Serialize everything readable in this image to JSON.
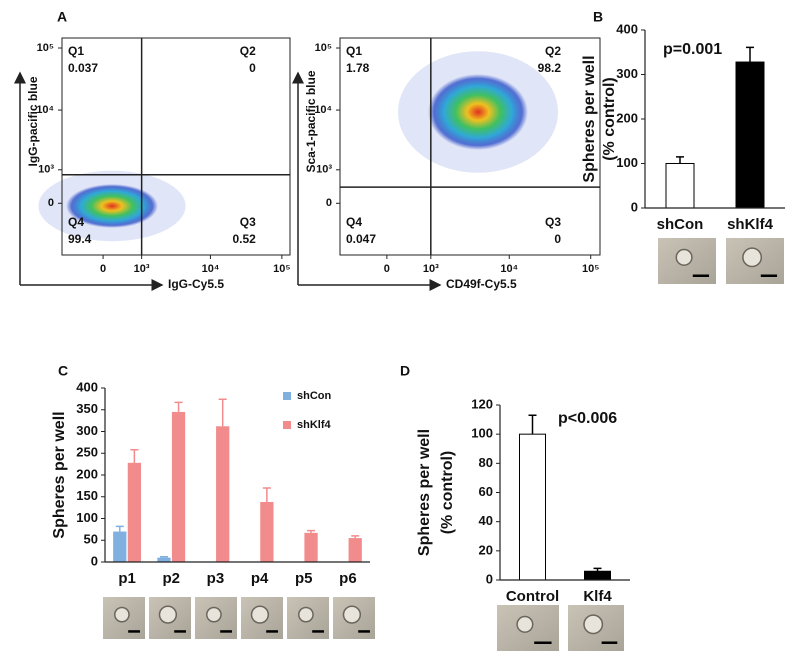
{
  "chart_data": [
    {
      "type": "flow",
      "panel": "A",
      "xlabel": "IgG-Cy5.5",
      "ylabel": "IgG-pacific blue",
      "xlim": [
        -1100,
        130000
      ],
      "ylim": [
        -2100,
        145000
      ],
      "xticks": [
        0,
        {
          "value": 1000,
          "label": "10³"
        },
        {
          "value": 10000,
          "label": "10⁴"
        },
        {
          "value": 100000,
          "label": "10⁵"
        }
      ],
      "yticks": [
        0,
        {
          "value": 1000,
          "label": "10³"
        },
        {
          "value": 10000,
          "label": "10⁴"
        },
        {
          "value": 100000,
          "label": "10⁵"
        }
      ],
      "gate": [
        1000,
        800
      ],
      "quadrants": [
        {
          "name": "Q1",
          "value": 0.037
        },
        {
          "name": "Q2",
          "value": 0
        },
        {
          "name": "Q3",
          "value": 0.52
        },
        {
          "name": "Q4",
          "value": 99.4
        }
      ]
    },
    {
      "type": "flow",
      "xlabel": "CD49f-Cy5.5",
      "ylabel": "Sca-1-pacific blue",
      "xlim": [
        -1100,
        130000
      ],
      "ylim": [
        -2100,
        145000
      ],
      "xticks": [
        0,
        {
          "value": 1000,
          "label": "10³"
        },
        {
          "value": 10000,
          "label": "10⁴"
        },
        {
          "value": 100000,
          "label": "10⁵"
        }
      ],
      "yticks": [
        0,
        {
          "value": 1000,
          "label": "10³"
        },
        {
          "value": 10000,
          "label": "10⁴"
        },
        {
          "value": 100000,
          "label": "10⁵"
        }
      ],
      "gate": [
        1000,
        400
      ],
      "quadrants": [
        {
          "name": "Q1",
          "value": 1.78
        },
        {
          "name": "Q2",
          "value": 98.2
        },
        {
          "name": "Q3",
          "value": 0
        },
        {
          "name": "Q4",
          "value": 0.047
        }
      ]
    },
    {
      "type": "bar",
      "panel": "B",
      "ylabel": [
        "Spheres per well",
        "(% control)"
      ],
      "annotation": "p=0.001",
      "categories": [
        "shCon",
        "shKlf4"
      ],
      "values": [
        100,
        328
      ],
      "errors": [
        15,
        33
      ],
      "colors": [
        "#ffffff",
        "#000000"
      ],
      "ylim": [
        0,
        400
      ],
      "yticks": [
        0,
        100,
        200,
        300,
        400
      ]
    },
    {
      "type": "grouped_bar",
      "panel": "C",
      "ylabel": "Spheres per well",
      "categories": [
        "p1",
        "p2",
        "p3",
        "p4",
        "p5",
        "p6"
      ],
      "series": [
        {
          "name": "shCon",
          "color": "#7fb0e0",
          "values": [
            70,
            10,
            0,
            0,
            0,
            0
          ],
          "errors": [
            12,
            2,
            0,
            0,
            0,
            0
          ]
        },
        {
          "name": "shKlf4",
          "color": "#f28b8b",
          "values": [
            228,
            345,
            312,
            138,
            67,
            55
          ],
          "errors": [
            30,
            22,
            62,
            32,
            5,
            5
          ]
        }
      ],
      "ylim": [
        0,
        400
      ],
      "yticks": [
        0,
        50,
        100,
        150,
        200,
        250,
        300,
        350,
        400
      ]
    },
    {
      "type": "bar",
      "panel": "D",
      "ylabel": [
        "Spheres per well",
        "(% control)"
      ],
      "annotation": "p<0.006",
      "categories": [
        "Control",
        "Klf4"
      ],
      "values": [
        100,
        6
      ],
      "errors": [
        13,
        2
      ],
      "colors": [
        "#ffffff",
        "#000000"
      ],
      "ylim": [
        0,
        120
      ],
      "yticks": [
        0,
        20,
        40,
        60,
        80,
        100,
        120
      ]
    }
  ]
}
